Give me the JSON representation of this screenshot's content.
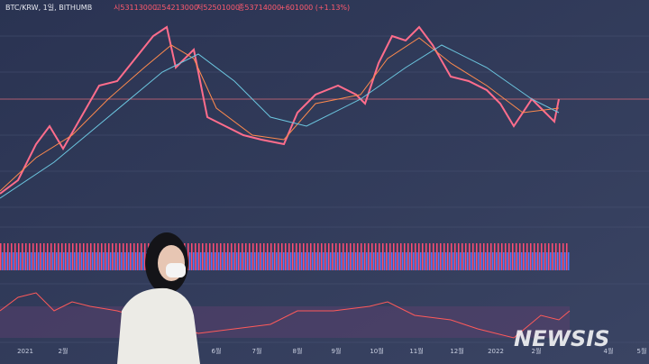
{
  "header": {
    "symbol": "BTC/KRW, 1일, BITHUMB",
    "open": "시53113000",
    "high": "고54213000",
    "low": "저52501000",
    "close": "종53714000",
    "change": "+601000 (+1.13%)"
  },
  "x_axis": [
    "2021",
    "2월",
    "6월",
    "7월",
    "8월",
    "9월",
    "10월",
    "11월",
    "12월",
    "2022",
    "2월",
    "4월",
    "5월"
  ],
  "watermark": "NEWSIS"
}
